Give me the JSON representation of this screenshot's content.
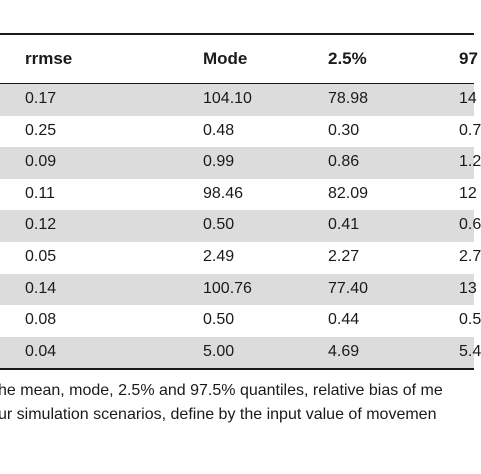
{
  "table": {
    "headers": [
      "rrmse",
      "Mode",
      "2.5%",
      "97"
    ],
    "rows": [
      {
        "rrmse": "0.17",
        "mode": "104.10",
        "q025": "78.98",
        "q975": "14"
      },
      {
        "rrmse": "0.25",
        "mode": "0.48",
        "q025": "0.30",
        "q975": "0.7"
      },
      {
        "rrmse": "0.09",
        "mode": "0.99",
        "q025": "0.86",
        "q975": "1.2"
      },
      {
        "rrmse": "0.11",
        "mode": "98.46",
        "q025": "82.09",
        "q975": "12"
      },
      {
        "rrmse": "0.12",
        "mode": "0.50",
        "q025": "0.41",
        "q975": "0.6"
      },
      {
        "rrmse": "0.05",
        "mode": "2.49",
        "q025": "2.27",
        "q975": "2.7"
      },
      {
        "rrmse": "0.14",
        "mode": "100.76",
        "q025": "77.40",
        "q975": "13"
      },
      {
        "rrmse": "0.08",
        "mode": "0.50",
        "q025": "0.44",
        "q975": "0.5"
      },
      {
        "rrmse": "0.04",
        "mode": "5.00",
        "q025": "4.69",
        "q975": "5.4"
      }
    ],
    "shaded_rows": [
      0,
      2,
      4,
      6,
      8
    ],
    "shade_color": "#dcdcdc"
  },
  "caption": {
    "line1": "he mean, mode, 2.5% and 97.5% quantiles, relative bias of me",
    "line2": "ur simulation scenarios, define by the input value of movemen"
  }
}
